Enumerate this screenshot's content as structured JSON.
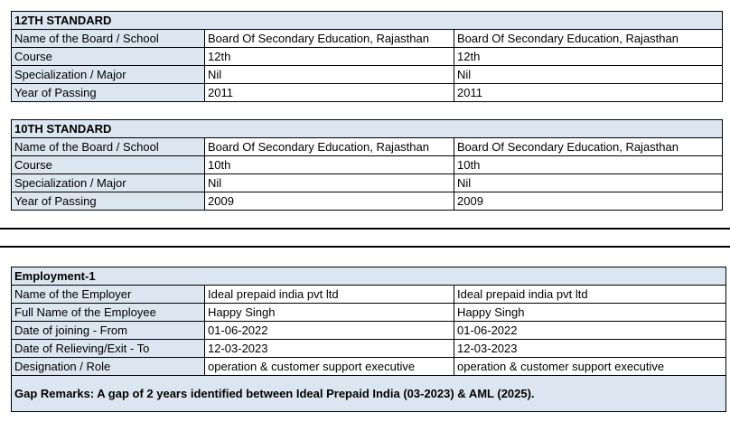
{
  "sections": [
    {
      "title": "12TH STANDARD",
      "rows": [
        {
          "label": "Name of the Board / School",
          "values": [
            "Board Of Secondary Education, Rajasthan",
            "Board Of Secondary Education, Rajasthan"
          ]
        },
        {
          "label": "Course",
          "values": [
            "12th",
            "12th"
          ]
        },
        {
          "label": "Specialization / Major",
          "values": [
            "Nil",
            "Nil"
          ]
        },
        {
          "label": "Year of Passing",
          "values": [
            "2011",
            "2011"
          ]
        }
      ]
    },
    {
      "title": "10TH STANDARD",
      "rows": [
        {
          "label": "Name of the Board / School",
          "values": [
            "Board Of Secondary Education, Rajasthan",
            "Board Of Secondary Education, Rajasthan"
          ]
        },
        {
          "label": "Course",
          "values": [
            "10th",
            "10th"
          ]
        },
        {
          "label": "Specialization / Major",
          "values": [
            "Nil",
            "Nil"
          ]
        },
        {
          "label": "Year of Passing",
          "values": [
            "2009",
            "2009"
          ]
        }
      ]
    },
    {
      "title": "Employment-1",
      "rows": [
        {
          "label": "Name of the Employer",
          "values": [
            "Ideal prepaid india pvt ltd",
            "Ideal prepaid india pvt ltd"
          ]
        },
        {
          "label": "Full Name of the Employee",
          "values": [
            "Happy Singh",
            "Happy Singh"
          ]
        },
        {
          "label": "Date of joining - From",
          "values": [
            "01-06-2022",
            "01-06-2022"
          ]
        },
        {
          "label": "Date of Relieving/Exit - To",
          "values": [
            "12-03-2023",
            "12-03-2023"
          ]
        },
        {
          "label": "Designation / Role",
          "values": [
            "operation & customer support executive",
            "operation & customer support executive"
          ]
        }
      ],
      "remarks": "Gap Remarks: A gap of 2 years identified between Ideal Prepaid India (03-2023) & AML (2025)."
    }
  ]
}
